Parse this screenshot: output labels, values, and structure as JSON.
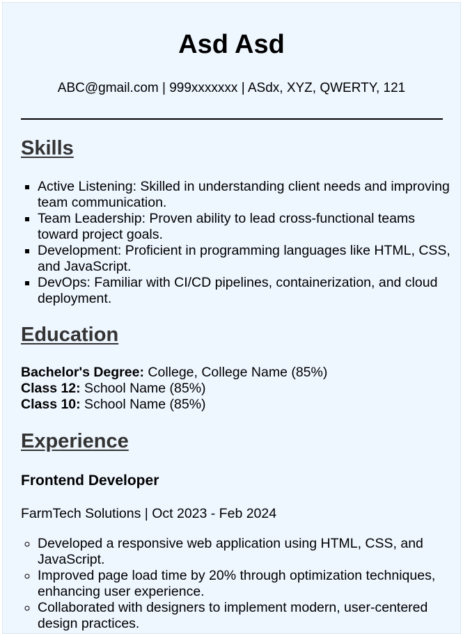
{
  "header": {
    "name": "Asd Asd",
    "contact": "ABC@gmail.com | 999xxxxxxx | ASdx, XYZ, QWERTY, 121"
  },
  "skills": {
    "heading": "Skills",
    "items": [
      "Active Listening: Skilled in understanding client needs and improving team communication.",
      "Team Leadership: Proven ability to lead cross-functional teams toward project goals.",
      "Development: Proficient in programming languages like HTML, CSS, and JavaScript.",
      "DevOps: Familiar with CI/CD pipelines, containerization, and cloud deployment."
    ]
  },
  "education": {
    "heading": "Education",
    "entries": [
      {
        "label": "Bachelor's Degree:",
        "value": " College, College Name (85%)"
      },
      {
        "label": "Class 12:",
        "value": " School Name (85%)"
      },
      {
        "label": "Class 10:",
        "value": " School Name (85%)"
      }
    ]
  },
  "experience": {
    "heading": "Experience",
    "jobs": [
      {
        "title": "Frontend Developer",
        "meta": "FarmTech Solutions | Oct 2023 - Feb 2024",
        "bullets": [
          "Developed a responsive web application using HTML, CSS, and JavaScript.",
          "Improved page load time by 20% through optimization techniques, enhancing user experience.",
          "Collaborated with designers to implement modern, user-centered design practices."
        ]
      }
    ]
  }
}
